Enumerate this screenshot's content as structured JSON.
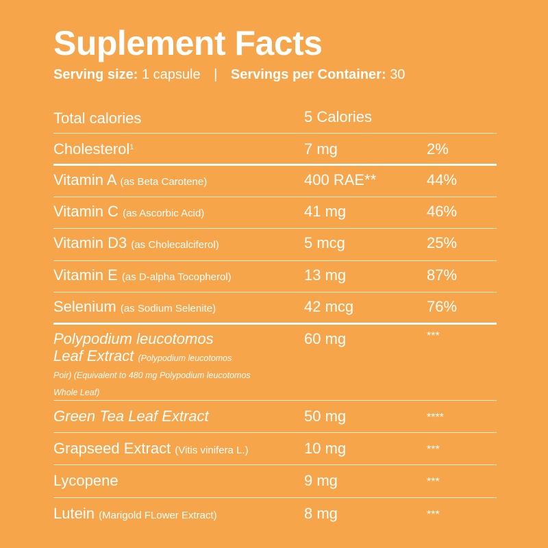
{
  "title": "Suplement Facts",
  "serving": {
    "size_label": "Serving size:",
    "size_value": "1 capsule",
    "separator": "|",
    "servings_label": "Servings per Container:",
    "servings_value": "30"
  },
  "rows": [
    {
      "name": "Total calories",
      "sub": "",
      "amount": "5 Calories",
      "dv": ""
    },
    {
      "name": "Cholesterol",
      "sup": "1",
      "sub": "",
      "amount": "7 mg",
      "dv": "2%"
    },
    {
      "name": "Vitamin A",
      "sub": "(as Beta Carotene)",
      "amount": "400 RAE**",
      "dv": "44%"
    },
    {
      "name": "Vitamin C",
      "sub": "(as Ascorbic Acid)",
      "amount": "41 mg",
      "dv": "46%"
    },
    {
      "name": "Vitamin D3",
      "sub": "(as Cholecalciferol)",
      "amount": "5 mcg",
      "dv": "25%"
    },
    {
      "name": "Vitamin E",
      "sub": "(as D-alpha Tocopherol)",
      "amount": "13 mg",
      "dv": "87%"
    },
    {
      "name": "Selenium",
      "sub": "(as Sodium Selenite)",
      "amount": "42 mcg",
      "dv": "76%"
    },
    {
      "name_line1": "Polypodium leucotomos",
      "name_line2": "Leaf Extract",
      "sub": "(Polypodium leucotomos Poir) (Equivalent to 480 mg Polypodium leucotomos Whole Leaf)",
      "amount": "60 mg",
      "dv": "***"
    },
    {
      "name": "Green Tea Leaf Extract",
      "sub": "",
      "amount": "50 mg",
      "dv": "****"
    },
    {
      "name": "Grapseed Extract",
      "sub": "(Vitis vinifera L.)",
      "amount": "10 mg",
      "dv": "***"
    },
    {
      "name": "Lycopene",
      "sub": "",
      "amount": "9 mg",
      "dv": "***"
    },
    {
      "name": "Lutein",
      "sub": "(Marigold FLower Extract)",
      "amount": "8 mg",
      "dv": "***"
    }
  ]
}
